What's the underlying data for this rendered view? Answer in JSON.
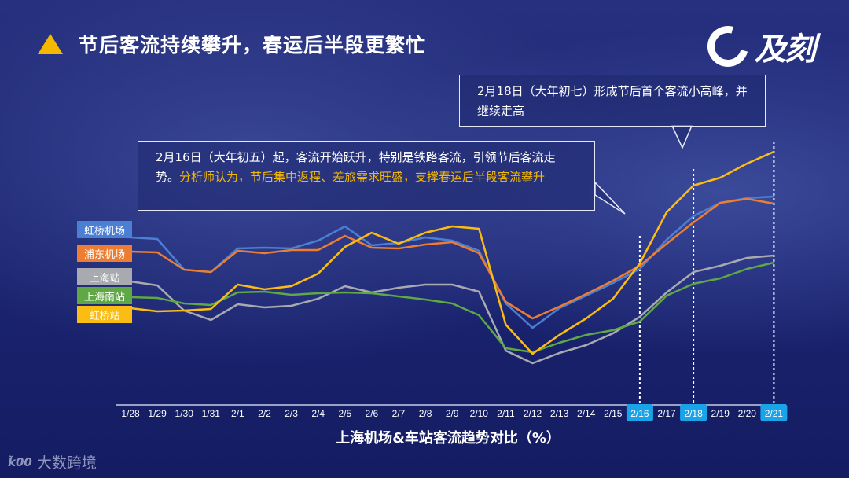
{
  "title": "节后客流持续攀升，春运后半段更繁忙",
  "logo_text": "及刻",
  "watermark": "大数跨境",
  "watermark_mark": "k̃00",
  "callout_1": {
    "text": "2月18日（大年初七）形成节后首个客流小高峰，并继续走高"
  },
  "callout_2": {
    "text_white": "2月16日（大年初五）起，客流开始跃升，特别是铁路客流，引领节后客流走势。",
    "text_highlight": "分析师认为，节后集中返程、差旅需求旺盛，支撑春运后半段客流攀升"
  },
  "colors": {
    "accent": "#f5b800",
    "highlight_tick": "#1aa3e8"
  },
  "chart_data": {
    "type": "line",
    "title": "上海机场&车站客流趋势对比（%）",
    "xlabel": "上海机场&车站客流趋势对比（%）",
    "ylabel": "",
    "unit": "relative index (no y-axis shown)",
    "ylim": [
      0,
      350
    ],
    "grid": false,
    "legend_placement": "left",
    "categories": [
      "1/28",
      "1/29",
      "1/30",
      "1/31",
      "2/1",
      "2/2",
      "2/3",
      "2/4",
      "2/5",
      "2/6",
      "2/7",
      "2/8",
      "2/9",
      "2/10",
      "2/11",
      "2/12",
      "2/13",
      "2/14",
      "2/15",
      "2/16",
      "2/17",
      "2/18",
      "2/19",
      "2/20",
      "2/21"
    ],
    "highlighted_categories": [
      "2/16",
      "2/18",
      "2/21"
    ],
    "series": [
      {
        "name": "虹桥机场",
        "color": "#4a7fd4",
        "values": [
          198,
          196,
          157,
          154,
          184,
          185,
          184,
          194,
          212,
          188,
          191,
          198,
          194,
          181,
          114,
          83,
          108,
          124,
          140,
          158,
          195,
          225,
          242,
          248,
          250
        ]
      },
      {
        "name": "浦东机场",
        "color": "#ed7d31",
        "values": [
          180,
          179,
          157,
          154,
          181,
          178,
          182,
          182,
          200,
          185,
          184,
          189,
          192,
          178,
          116,
          95,
          110,
          126,
          143,
          162,
          190,
          217,
          242,
          247,
          241
        ]
      },
      {
        "name": "上海站",
        "color": "#a8aab0",
        "values": [
          142,
          137,
          105,
          93,
          113,
          109,
          111,
          120,
          136,
          128,
          134,
          138,
          138,
          129,
          54,
          38,
          51,
          61,
          76,
          97,
          128,
          154,
          162,
          172,
          175
        ]
      },
      {
        "name": "上海南站",
        "color": "#5fa845",
        "values": [
          122,
          121,
          114,
          112,
          128,
          129,
          125,
          127,
          128,
          127,
          123,
          119,
          114,
          99,
          57,
          52,
          64,
          74,
          80,
          91,
          124,
          139,
          146,
          158,
          166
        ]
      },
      {
        "name": "虹桥站",
        "color": "#fbbd13",
        "values": [
          108,
          104,
          105,
          107,
          138,
          132,
          136,
          152,
          186,
          204,
          190,
          204,
          212,
          209,
          87,
          50,
          74,
          95,
          120,
          165,
          230,
          264,
          274,
          292,
          307
        ]
      }
    ]
  }
}
